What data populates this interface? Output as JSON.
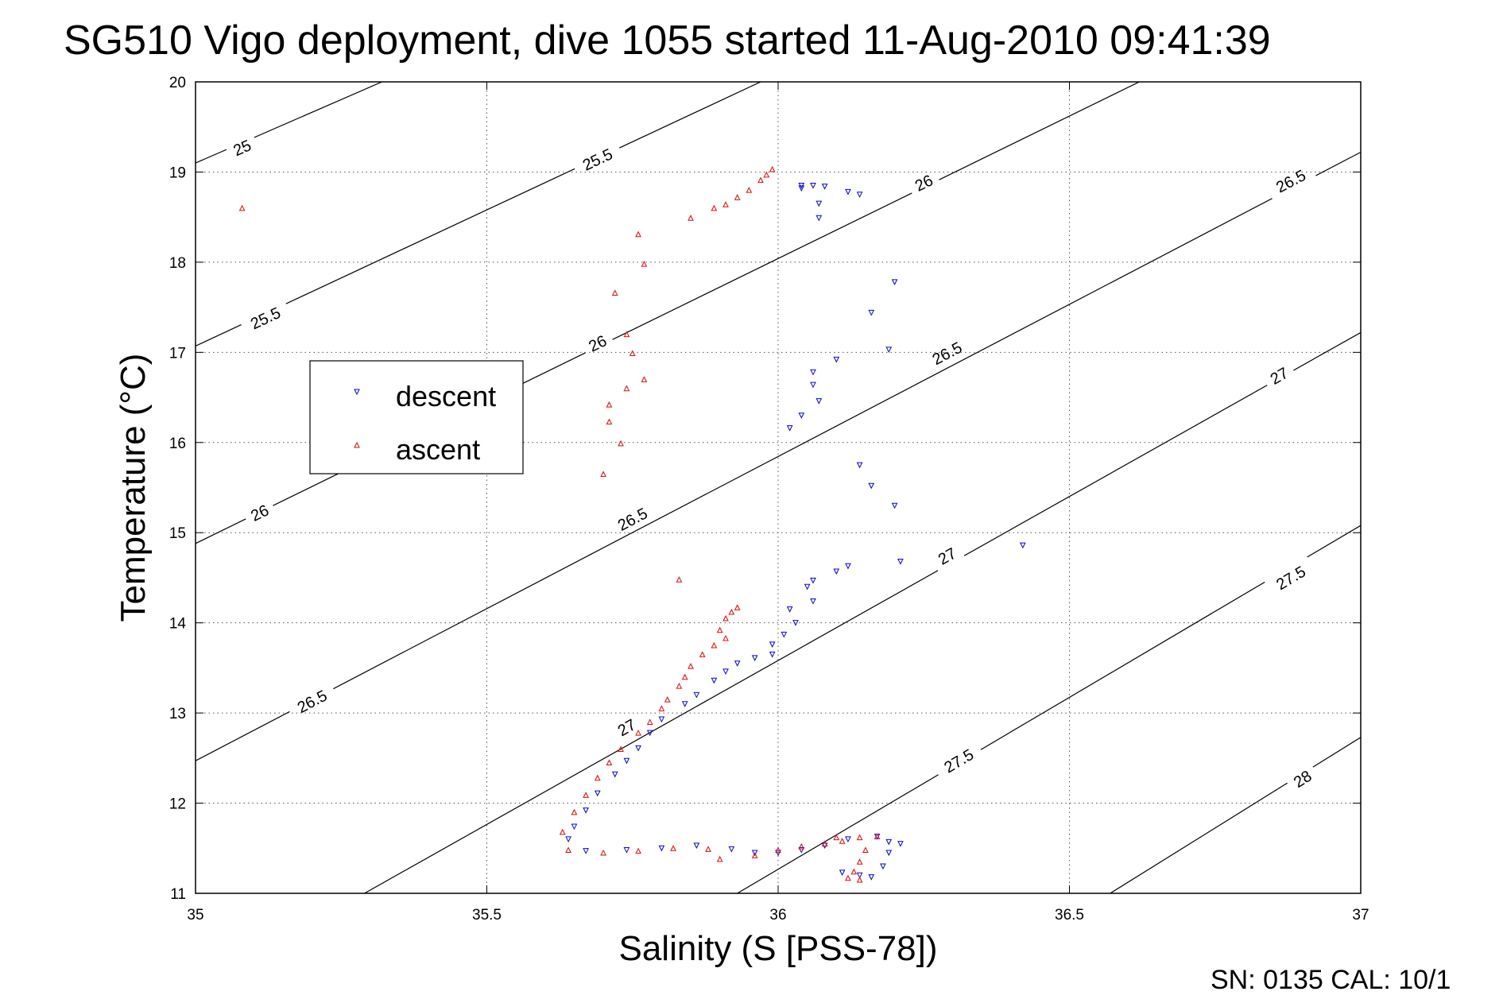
{
  "title": "SG510 Vigo deployment, dive 1055 started 11-Aug-2010 09:41:39",
  "footer": "SN: 0135  CAL: 10/1",
  "chart_data": {
    "type": "scatter",
    "title": "SG510 Vigo deployment, dive 1055 started 11-Aug-2010 09:41:39",
    "xlabel": "Salinity (S [PSS-78])",
    "ylabel": "Temperature (°C)",
    "xlim": [
      35,
      37
    ],
    "ylim": [
      11,
      20
    ],
    "x_ticks": [
      35,
      35.5,
      36,
      36.5,
      37
    ],
    "x_tick_labels": [
      "35",
      "35.5",
      "36",
      "36.5",
      "37"
    ],
    "y_ticks": [
      11,
      12,
      13,
      14,
      15,
      16,
      17,
      18,
      19,
      20
    ],
    "y_tick_labels": [
      "11",
      "12",
      "13",
      "14",
      "15",
      "16",
      "17",
      "18",
      "19",
      "20"
    ],
    "grid": true,
    "legend_position": "left",
    "contours": [
      {
        "level": "25",
        "points": [
          [
            35,
            19.1
          ],
          [
            35.32,
            20
          ]
        ],
        "labels": [
          [
            35.08,
            19.27
          ]
        ]
      },
      {
        "level": "25.5",
        "points": [
          [
            35,
            17.07
          ],
          [
            35.97,
            20
          ]
        ],
        "labels": [
          [
            35.12,
            17.38
          ],
          [
            35.69,
            19.14
          ]
        ]
      },
      {
        "level": "26",
        "points": [
          [
            35,
            14.88
          ],
          [
            36.62,
            20
          ]
        ],
        "labels": [
          [
            35.11,
            15.22
          ],
          [
            35.69,
            17.1
          ],
          [
            36.25,
            18.88
          ]
        ]
      },
      {
        "level": "26.5",
        "points": [
          [
            35,
            12.47
          ],
          [
            37,
            19.22
          ]
        ],
        "labels": [
          [
            35.2,
            13.13
          ],
          [
            35.75,
            15.15
          ],
          [
            36.29,
            16.99
          ],
          [
            36.88,
            18.9
          ]
        ]
      },
      {
        "level": "27",
        "points": [
          [
            35.29,
            11
          ],
          [
            37,
            17.22
          ]
        ],
        "labels": [
          [
            35.74,
            12.84
          ],
          [
            36.29,
            14.74
          ],
          [
            36.86,
            16.74
          ]
        ]
      },
      {
        "level": "27.5",
        "points": [
          [
            35.93,
            11
          ],
          [
            37,
            15.08
          ]
        ],
        "labels": [
          [
            36.31,
            12.47
          ],
          [
            36.88,
            14.5
          ]
        ]
      },
      {
        "level": "28",
        "points": [
          [
            36.57,
            11
          ],
          [
            37,
            12.73
          ]
        ],
        "labels": [
          [
            36.9,
            12.27
          ]
        ]
      }
    ],
    "series": [
      {
        "name": "descent",
        "color": "#0000ff",
        "marker": "triangle-down",
        "points": [
          [
            36.04,
            18.85
          ],
          [
            36.04,
            18.82
          ],
          [
            36.06,
            18.85
          ],
          [
            36.08,
            18.84
          ],
          [
            36.12,
            18.78
          ],
          [
            36.14,
            18.75
          ],
          [
            36.07,
            18.65
          ],
          [
            36.07,
            18.49
          ],
          [
            36.2,
            17.78
          ],
          [
            36.16,
            17.44
          ],
          [
            36.19,
            17.03
          ],
          [
            36.1,
            16.92
          ],
          [
            36.06,
            16.78
          ],
          [
            36.06,
            16.64
          ],
          [
            36.07,
            16.46
          ],
          [
            36.04,
            16.3
          ],
          [
            36.02,
            16.16
          ],
          [
            36.14,
            15.75
          ],
          [
            36.16,
            15.52
          ],
          [
            36.2,
            15.3
          ],
          [
            36.42,
            14.86
          ],
          [
            36.21,
            14.68
          ],
          [
            36.12,
            14.63
          ],
          [
            36.1,
            14.57
          ],
          [
            36.06,
            14.47
          ],
          [
            36.05,
            14.4
          ],
          [
            36.06,
            14.24
          ],
          [
            36.02,
            14.15
          ],
          [
            36.03,
            14.0
          ],
          [
            36.01,
            13.87
          ],
          [
            35.99,
            13.76
          ],
          [
            35.99,
            13.65
          ],
          [
            35.96,
            13.61
          ],
          [
            35.93,
            13.55
          ],
          [
            35.91,
            13.46
          ],
          [
            35.89,
            13.36
          ],
          [
            35.86,
            13.2
          ],
          [
            35.84,
            13.1
          ],
          [
            35.8,
            12.93
          ],
          [
            35.78,
            12.78
          ],
          [
            35.76,
            12.61
          ],
          [
            35.74,
            12.47
          ],
          [
            35.72,
            12.32
          ],
          [
            35.69,
            12.11
          ],
          [
            35.67,
            11.92
          ],
          [
            35.65,
            11.74
          ],
          [
            35.64,
            11.6
          ],
          [
            35.67,
            11.47
          ],
          [
            35.74,
            11.48
          ],
          [
            35.8,
            11.5
          ],
          [
            35.86,
            11.53
          ],
          [
            35.92,
            11.49
          ],
          [
            35.96,
            11.45
          ],
          [
            36.0,
            11.45
          ],
          [
            36.04,
            11.48
          ],
          [
            36.08,
            11.53
          ],
          [
            36.12,
            11.6
          ],
          [
            36.17,
            11.63
          ],
          [
            36.19,
            11.57
          ],
          [
            36.21,
            11.55
          ],
          [
            36.19,
            11.45
          ],
          [
            36.18,
            11.3
          ],
          [
            36.16,
            11.18
          ],
          [
            36.14,
            11.2
          ],
          [
            36.11,
            11.23
          ]
        ]
      },
      {
        "name": "ascent",
        "color": "#ff0000",
        "marker": "triangle-up",
        "points": [
          [
            35.08,
            18.6
          ],
          [
            35.99,
            19.03
          ],
          [
            35.98,
            18.97
          ],
          [
            35.97,
            18.91
          ],
          [
            35.95,
            18.8
          ],
          [
            35.93,
            18.72
          ],
          [
            35.91,
            18.64
          ],
          [
            35.89,
            18.6
          ],
          [
            35.85,
            18.49
          ],
          [
            35.76,
            18.31
          ],
          [
            35.77,
            17.98
          ],
          [
            35.72,
            17.66
          ],
          [
            35.74,
            17.2
          ],
          [
            35.75,
            16.99
          ],
          [
            35.77,
            16.7
          ],
          [
            35.74,
            16.6
          ],
          [
            35.71,
            16.42
          ],
          [
            35.71,
            16.23
          ],
          [
            35.73,
            15.99
          ],
          [
            35.7,
            15.65
          ],
          [
            35.83,
            14.48
          ],
          [
            35.93,
            14.17
          ],
          [
            35.92,
            14.12
          ],
          [
            35.91,
            14.05
          ],
          [
            35.9,
            13.92
          ],
          [
            35.91,
            13.83
          ],
          [
            35.89,
            13.75
          ],
          [
            35.87,
            13.65
          ],
          [
            35.85,
            13.52
          ],
          [
            35.84,
            13.4
          ],
          [
            35.83,
            13.3
          ],
          [
            35.81,
            13.15
          ],
          [
            35.8,
            13.05
          ],
          [
            35.78,
            12.9
          ],
          [
            35.76,
            12.78
          ],
          [
            35.73,
            12.6
          ],
          [
            35.71,
            12.45
          ],
          [
            35.69,
            12.28
          ],
          [
            35.67,
            12.09
          ],
          [
            35.65,
            11.9
          ],
          [
            35.63,
            11.68
          ],
          [
            35.64,
            11.48
          ],
          [
            35.7,
            11.45
          ],
          [
            35.76,
            11.47
          ],
          [
            35.82,
            11.5
          ],
          [
            35.88,
            11.49
          ],
          [
            35.9,
            11.38
          ],
          [
            35.96,
            11.42
          ],
          [
            36.0,
            11.48
          ],
          [
            36.04,
            11.52
          ],
          [
            36.08,
            11.55
          ],
          [
            36.11,
            11.58
          ],
          [
            36.14,
            11.62
          ],
          [
            36.17,
            11.63
          ],
          [
            36.15,
            11.48
          ],
          [
            36.14,
            11.35
          ],
          [
            36.13,
            11.24
          ],
          [
            36.12,
            11.17
          ],
          [
            36.14,
            11.15
          ],
          [
            36.1,
            11.62
          ]
        ]
      }
    ]
  }
}
